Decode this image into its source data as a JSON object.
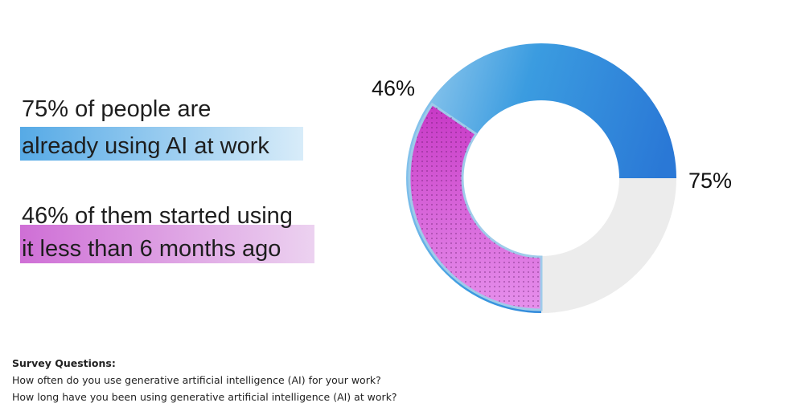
{
  "chart_data": {
    "type": "nested-donut",
    "values": [
      75,
      46
    ],
    "value_labels": [
      "75%",
      "46%"
    ],
    "colors": [
      "#2f82d9",
      "#c845c8",
      "#ececec"
    ]
  },
  "headlines": [
    {
      "line1": "75% of people are",
      "line2": "already using AI at work"
    },
    {
      "line1": "46% of them started using",
      "line2": "it less than 6 months ago"
    }
  ],
  "footnote": {
    "title": "Survey Questions:",
    "lines": [
      "How often do you use generative artificial intelligence (AI) for your work?",
      "How long have you been using generative artificial intelligence (AI) at work?"
    ]
  }
}
